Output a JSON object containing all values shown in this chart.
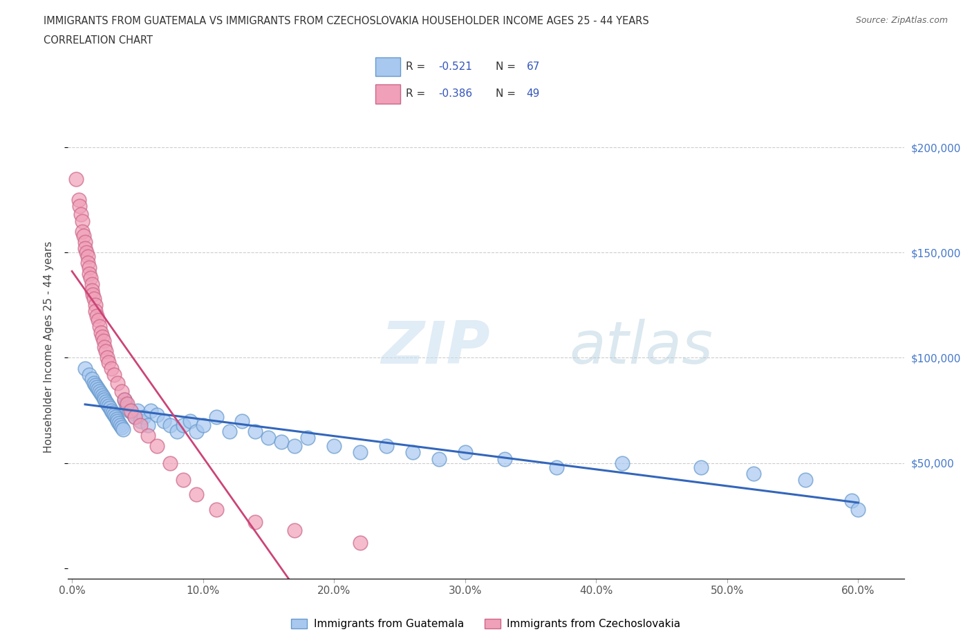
{
  "title_line1": "IMMIGRANTS FROM GUATEMALA VS IMMIGRANTS FROM CZECHOSLOVAKIA HOUSEHOLDER INCOME AGES 25 - 44 YEARS",
  "title_line2": "CORRELATION CHART",
  "source": "Source: ZipAtlas.com",
  "xlabel_ticks": [
    "0.0%",
    "10.0%",
    "20.0%",
    "30.0%",
    "40.0%",
    "50.0%",
    "60.0%"
  ],
  "xlabel_vals": [
    0.0,
    0.1,
    0.2,
    0.3,
    0.4,
    0.5,
    0.6
  ],
  "ylabel_vals": [
    0,
    50000,
    100000,
    150000,
    200000
  ],
  "ylim": [
    -5000,
    215000
  ],
  "xlim": [
    -0.003,
    0.635
  ],
  "color_guatemala": "#a8c8f0",
  "color_czechoslovakia": "#f0a0b8",
  "color_edge_guatemala": "#6699cc",
  "color_edge_czechoslovakia": "#cc6688",
  "color_trend_guatemala": "#3366bb",
  "color_trend_czechoslovakia": "#cc4477",
  "watermark_zip": "ZIP",
  "watermark_atlas": "atlas",
  "guatemala_x": [
    0.01,
    0.013,
    0.015,
    0.017,
    0.018,
    0.019,
    0.02,
    0.021,
    0.022,
    0.023,
    0.024,
    0.025,
    0.026,
    0.027,
    0.028,
    0.029,
    0.03,
    0.031,
    0.032,
    0.033,
    0.034,
    0.035,
    0.036,
    0.037,
    0.038,
    0.039,
    0.04,
    0.041,
    0.042,
    0.044,
    0.046,
    0.048,
    0.05,
    0.052,
    0.055,
    0.058,
    0.06,
    0.065,
    0.07,
    0.075,
    0.08,
    0.085,
    0.09,
    0.095,
    0.1,
    0.11,
    0.12,
    0.13,
    0.14,
    0.15,
    0.16,
    0.17,
    0.18,
    0.2,
    0.22,
    0.24,
    0.26,
    0.28,
    0.3,
    0.33,
    0.37,
    0.42,
    0.48,
    0.52,
    0.56,
    0.595,
    0.6
  ],
  "guatemala_y": [
    95000,
    92000,
    90000,
    88000,
    87000,
    86000,
    85000,
    84000,
    83000,
    82000,
    81000,
    80000,
    79000,
    78000,
    77000,
    76000,
    75000,
    74000,
    73000,
    72000,
    71000,
    70000,
    69000,
    68000,
    67000,
    66000,
    80000,
    78000,
    76000,
    75000,
    74000,
    72000,
    75000,
    70000,
    72000,
    68000,
    75000,
    73000,
    70000,
    68000,
    65000,
    68000,
    70000,
    65000,
    68000,
    72000,
    65000,
    70000,
    65000,
    62000,
    60000,
    58000,
    62000,
    58000,
    55000,
    58000,
    55000,
    52000,
    55000,
    52000,
    48000,
    50000,
    48000,
    45000,
    42000,
    32000,
    28000
  ],
  "czechoslovakia_x": [
    0.003,
    0.005,
    0.006,
    0.007,
    0.008,
    0.008,
    0.009,
    0.01,
    0.01,
    0.011,
    0.012,
    0.012,
    0.013,
    0.013,
    0.014,
    0.015,
    0.015,
    0.016,
    0.017,
    0.018,
    0.018,
    0.019,
    0.02,
    0.021,
    0.022,
    0.023,
    0.024,
    0.025,
    0.026,
    0.027,
    0.028,
    0.03,
    0.032,
    0.035,
    0.038,
    0.04,
    0.042,
    0.045,
    0.048,
    0.052,
    0.058,
    0.065,
    0.075,
    0.085,
    0.095,
    0.11,
    0.14,
    0.17,
    0.22
  ],
  "czechoslovakia_y": [
    185000,
    175000,
    172000,
    168000,
    165000,
    160000,
    158000,
    155000,
    152000,
    150000,
    148000,
    145000,
    143000,
    140000,
    138000,
    135000,
    132000,
    130000,
    128000,
    125000,
    122000,
    120000,
    118000,
    115000,
    112000,
    110000,
    108000,
    105000,
    103000,
    100000,
    98000,
    95000,
    92000,
    88000,
    84000,
    80000,
    78000,
    75000,
    72000,
    68000,
    63000,
    58000,
    50000,
    42000,
    35000,
    28000,
    22000,
    18000,
    12000
  ]
}
